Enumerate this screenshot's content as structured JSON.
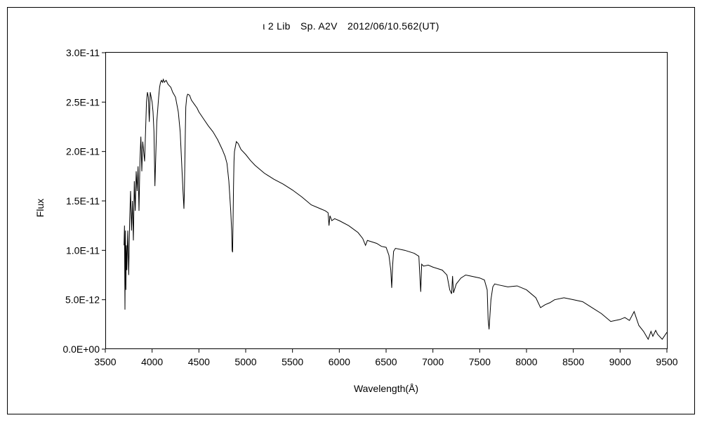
{
  "chart_data": {
    "type": "line",
    "title": "ι 2 Lib　Sp. A2V　2012/06/10.562(UT)",
    "xlabel": "Wavelength(Å)",
    "ylabel": "Flux",
    "xlim": [
      3500,
      9500
    ],
    "ylim": [
      0,
      3e-11
    ],
    "xticks": [
      3500,
      4000,
      4500,
      5000,
      5500,
      6000,
      6500,
      7000,
      7500,
      8000,
      8500,
      9000,
      9500
    ],
    "xtick_labels": [
      "3500",
      "4000",
      "4500",
      "5000",
      "5500",
      "6000",
      "6500",
      "7000",
      "7500",
      "8000",
      "8500",
      "9000",
      "9500"
    ],
    "yticks": [
      0,
      5e-12,
      1e-11,
      1.5e-11,
      2e-11,
      2.5e-11,
      3e-11
    ],
    "ytick_labels": [
      "0.0E+00",
      "5.0E-12",
      "1.0E-11",
      "1.5E-11",
      "2.0E-11",
      "2.5E-11",
      "3.0E-11"
    ],
    "grid": false,
    "legend": "none",
    "line_color": "#000000",
    "series": [
      {
        "x": [
          3700,
          3705,
          3710,
          3715,
          3720,
          3725,
          3730,
          3740,
          3750,
          3760,
          3770,
          3780,
          3790,
          3800,
          3810,
          3820,
          3830,
          3840,
          3850,
          3860,
          3870,
          3880,
          3890,
          3900,
          3910,
          3920,
          3930,
          3940,
          3950,
          3960,
          3970,
          3980,
          3990,
          4000,
          4010,
          4020,
          4030,
          4050,
          4070,
          4080,
          4090,
          4100,
          4110,
          4120,
          4130,
          4150,
          4170,
          4200,
          4220,
          4250,
          4280,
          4300,
          4320,
          4330,
          4340,
          4345,
          4350,
          4355,
          4360,
          4370,
          4380,
          4400,
          4420,
          4450,
          4480,
          4500,
          4550,
          4600,
          4650,
          4700,
          4750,
          4780,
          4800,
          4820,
          4840,
          4850,
          4855,
          4860,
          4865,
          4870,
          4875,
          4880,
          4890,
          4900,
          4920,
          4950,
          5000,
          5050,
          5100,
          5150,
          5200,
          5250,
          5300,
          5400,
          5500,
          5600,
          5700,
          5800,
          5850,
          5880,
          5890,
          5900,
          5920,
          5950,
          6000,
          6100,
          6200,
          6250,
          6280,
          6300,
          6400,
          6450,
          6500,
          6530,
          6550,
          6560,
          6570,
          6580,
          6600,
          6700,
          6800,
          6850,
          6860,
          6870,
          6880,
          6900,
          6950,
          7000,
          7100,
          7150,
          7180,
          7200,
          7210,
          7220,
          7250,
          7300,
          7350,
          7400,
          7500,
          7550,
          7580,
          7590,
          7600,
          7610,
          7620,
          7640,
          7660,
          7700,
          7800,
          7900,
          8000,
          8100,
          8150,
          8200,
          8250,
          8300,
          8400,
          8500,
          8600,
          8700,
          8800,
          8900,
          9000,
          9050,
          9100,
          9150,
          9200,
          9250,
          9300,
          9330,
          9350,
          9380,
          9400,
          9450,
          9500
        ],
        "values": [
          1.05e-11,
          1.25e-11,
          4e-12,
          1.2e-11,
          6e-12,
          1.05e-11,
          8e-12,
          1.2e-11,
          7.5e-12,
          1.3e-11,
          1.6e-11,
          1.2e-11,
          1.5e-11,
          1.1e-11,
          1.7e-11,
          1.4e-11,
          1.8e-11,
          1.6e-11,
          1.85e-11,
          1.4e-11,
          1.9e-11,
          2.15e-11,
          1.8e-11,
          2.1e-11,
          2e-11,
          1.9e-11,
          2.2e-11,
          2.5e-11,
          2.6e-11,
          2.55e-11,
          2.3e-11,
          2.6e-11,
          2.55e-11,
          2.5e-11,
          2.4e-11,
          2.2e-11,
          1.65e-11,
          2.3e-11,
          2.55e-11,
          2.65e-11,
          2.7e-11,
          2.72e-11,
          2.7e-11,
          2.73e-11,
          2.7e-11,
          2.72e-11,
          2.68e-11,
          2.65e-11,
          2.6e-11,
          2.55e-11,
          2.4e-11,
          2.2e-11,
          1.8e-11,
          1.6e-11,
          1.42e-11,
          1.6e-11,
          1.9e-11,
          2.2e-11,
          2.45e-11,
          2.55e-11,
          2.58e-11,
          2.57e-11,
          2.52e-11,
          2.48e-11,
          2.44e-11,
          2.4e-11,
          2.33e-11,
          2.26e-11,
          2.2e-11,
          2.12e-11,
          2.02e-11,
          1.95e-11,
          1.88e-11,
          1.7e-11,
          1.4e-11,
          1.2e-11,
          1e-11,
          9.8e-12,
          1.3e-11,
          1.65e-11,
          1.9e-11,
          2e-11,
          2.05e-11,
          2.1e-11,
          2.08e-11,
          2.02e-11,
          1.97e-11,
          1.91e-11,
          1.86e-11,
          1.82e-11,
          1.78e-11,
          1.75e-11,
          1.72e-11,
          1.67e-11,
          1.61e-11,
          1.54e-11,
          1.46e-11,
          1.42e-11,
          1.4e-11,
          1.38e-11,
          1.25e-11,
          1.35e-11,
          1.3e-11,
          1.32e-11,
          1.3e-11,
          1.25e-11,
          1.18e-11,
          1.12e-11,
          1.05e-11,
          1.1e-11,
          1.07e-11,
          1.04e-11,
          1.03e-11,
          9.5e-12,
          8e-12,
          6.2e-12,
          8.5e-12,
          9.9e-12,
          1.02e-11,
          1e-11,
          9.7e-12,
          9.4e-12,
          7.5e-12,
          5.8e-12,
          8.6e-12,
          8.4e-12,
          8.5e-12,
          8.3e-12,
          8e-12,
          7.5e-12,
          6e-12,
          5.6e-12,
          7.4e-12,
          5.7e-12,
          6.6e-12,
          7.2e-12,
          7.5e-12,
          7.4e-12,
          7.2e-12,
          7e-12,
          6e-12,
          3e-12,
          2e-12,
          3.5e-12,
          5e-12,
          6.3e-12,
          6.6e-12,
          6.5e-12,
          6.3e-12,
          6.4e-12,
          6e-12,
          5.2e-12,
          4.2e-12,
          4.5e-12,
          4.7e-12,
          5e-12,
          5.2e-12,
          5e-12,
          4.8e-12,
          4.2e-12,
          3.6e-12,
          2.8e-12,
          3e-12,
          3.2e-12,
          2.9e-12,
          3.8e-12,
          2.4e-12,
          1.8e-12,
          1e-12,
          1.8e-12,
          1.3e-12,
          1.9e-12,
          1.5e-12,
          1e-12,
          1.7e-12
        ]
      }
    ]
  }
}
